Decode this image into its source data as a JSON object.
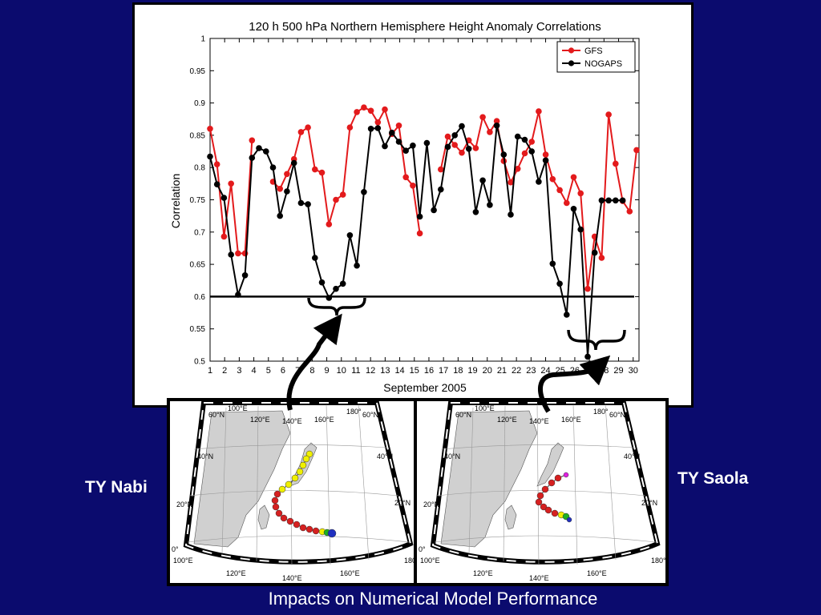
{
  "chart_data": {
    "type": "line",
    "title": "120 h 500 hPa Northern Hemisphere Height Anomaly Correlations",
    "xlabel": "September 2005",
    "ylabel": "Correlation",
    "xlim": [
      1,
      30.4
    ],
    "ylim": [
      0.5,
      1
    ],
    "x_ticks": [
      1,
      2,
      3,
      4,
      5,
      6,
      7,
      8,
      9,
      10,
      11,
      12,
      13,
      14,
      15,
      16,
      17,
      18,
      19,
      20,
      21,
      22,
      23,
      24,
      25,
      26,
      27,
      28,
      29,
      30
    ],
    "y_ticks": [
      0.5,
      0.55,
      0.6,
      0.65,
      0.7,
      0.75,
      0.8,
      0.85,
      0.9,
      0.95,
      1
    ],
    "y_tick_labels": [
      "0.5",
      "0.55",
      "0.6",
      "0.65",
      "0.7",
      "0.75",
      "0.8",
      "0.85",
      "0.9",
      "0.95",
      "1"
    ],
    "threshold": 0.6,
    "legend_position": "top-right",
    "series": [
      {
        "name": "GFS",
        "color": "#e31a1c",
        "points": [
          [
            1,
            0.86
          ],
          [
            1.5,
            0.805
          ],
          [
            2,
            0.693
          ],
          [
            2.5,
            0.775
          ],
          [
            3,
            0.667
          ],
          [
            3.5,
            0.667
          ],
          [
            4,
            0.842
          ],
          [
            null,
            null
          ],
          [
            5.5,
            0.778
          ],
          [
            6,
            0.767
          ],
          [
            6.5,
            0.79
          ],
          [
            7,
            0.813
          ],
          [
            7.5,
            0.855
          ],
          [
            8,
            0.862
          ],
          [
            8.5,
            0.797
          ],
          [
            9,
            0.792
          ],
          [
            9.5,
            0.712
          ],
          [
            10,
            0.75
          ],
          [
            10.5,
            0.758
          ],
          [
            11,
            0.862
          ],
          [
            11.5,
            0.886
          ],
          [
            12,
            0.893
          ],
          [
            12.5,
            0.888
          ],
          [
            13,
            0.87
          ],
          [
            13.5,
            0.89
          ],
          [
            14,
            0.852
          ],
          [
            14.5,
            0.865
          ],
          [
            15,
            0.785
          ],
          [
            15.5,
            0.772
          ],
          [
            16,
            0.698
          ],
          [
            null,
            null
          ],
          [
            17.5,
            0.797
          ],
          [
            18,
            0.848
          ],
          [
            18.5,
            0.835
          ],
          [
            19,
            0.823
          ],
          [
            19.5,
            0.842
          ],
          [
            20,
            0.83
          ],
          [
            20.5,
            0.878
          ],
          [
            21,
            0.855
          ],
          [
            21.5,
            0.872
          ],
          [
            22,
            0.81
          ],
          [
            22.5,
            0.777
          ],
          [
            23,
            0.798
          ],
          [
            23.5,
            0.822
          ],
          [
            24,
            0.84
          ],
          [
            24.5,
            0.887
          ],
          [
            25,
            0.82
          ],
          [
            25.5,
            0.782
          ],
          [
            26,
            0.765
          ],
          [
            26.5,
            0.745
          ],
          [
            27,
            0.785
          ],
          [
            27.5,
            0.76
          ],
          [
            28,
            0.612
          ],
          [
            28.5,
            0.693
          ],
          [
            29,
            0.66
          ],
          [
            29.5,
            0.882
          ],
          [
            30,
            0.806
          ],
          [
            30.5,
            0.748
          ],
          [
            31,
            0.732
          ],
          [
            31.5,
            0.827
          ]
        ]
      },
      {
        "name": "NOGAPS",
        "color": "#000000",
        "points": [
          [
            1,
            0.817
          ],
          [
            1.5,
            0.774
          ],
          [
            2,
            0.753
          ],
          [
            2.5,
            0.665
          ],
          [
            3,
            0.603
          ],
          [
            3.5,
            0.633
          ],
          [
            4,
            0.815
          ],
          [
            4.5,
            0.83
          ],
          [
            5,
            0.825
          ],
          [
            5.5,
            0.8
          ],
          [
            6,
            0.725
          ],
          [
            6.5,
            0.763
          ],
          [
            7,
            0.807
          ],
          [
            7.5,
            0.745
          ],
          [
            8,
            0.743
          ],
          [
            8.5,
            0.66
          ],
          [
            9,
            0.622
          ],
          [
            9.5,
            0.598
          ],
          [
            10,
            0.612
          ],
          [
            10.5,
            0.62
          ],
          [
            11,
            0.695
          ],
          [
            11.5,
            0.648
          ],
          [
            12,
            0.762
          ],
          [
            12.5,
            0.86
          ],
          [
            13,
            0.861
          ],
          [
            13.5,
            0.833
          ],
          [
            14,
            0.854
          ],
          [
            14.5,
            0.84
          ],
          [
            15,
            0.826
          ],
          [
            15.5,
            0.834
          ],
          [
            16,
            0.724
          ],
          [
            16.5,
            0.838
          ],
          [
            17,
            0.734
          ],
          [
            17.5,
            0.766
          ],
          [
            18,
            0.832
          ],
          [
            18.5,
            0.85
          ],
          [
            19,
            0.864
          ],
          [
            19.5,
            0.829
          ],
          [
            20,
            0.731
          ],
          [
            20.5,
            0.78
          ],
          [
            21,
            0.742
          ],
          [
            21.5,
            0.865
          ],
          [
            22,
            0.82
          ],
          [
            22.5,
            0.727
          ],
          [
            23,
            0.848
          ],
          [
            23.5,
            0.843
          ],
          [
            24,
            0.825
          ],
          [
            24.5,
            0.778
          ],
          [
            25,
            0.811
          ],
          [
            25.5,
            0.651
          ],
          [
            26,
            0.62
          ],
          [
            26.5,
            0.572
          ],
          [
            27,
            0.736
          ],
          [
            27.5,
            0.704
          ],
          [
            28,
            0.507
          ],
          [
            28.5,
            0.668
          ],
          [
            29,
            0.749
          ],
          [
            29.5,
            0.749
          ],
          [
            30,
            0.749
          ],
          [
            30.5,
            0.749
          ]
        ]
      }
    ]
  },
  "maps": {
    "nabi": {
      "lon_labels_top": [
        "60°N",
        "100°E",
        "120°E",
        "140°E",
        "160°E",
        "180°",
        "60°N"
      ],
      "lat_labels": [
        "40°N",
        "20°N",
        "0°"
      ],
      "lon_labels_bottom": [
        "100°E",
        "120°E",
        "140°E",
        "160°E",
        "180°"
      ],
      "track_colors": [
        "#d62020",
        "#f0f000",
        "#2030c0",
        "#20b020"
      ]
    },
    "saola": {
      "lon_labels_top": [
        "60°N",
        "100°E",
        "120°E",
        "140°E",
        "160°E",
        "180°",
        "60°N"
      ],
      "lat_labels": [
        "40°N",
        "20°N",
        "0°"
      ],
      "lon_labels_bottom": [
        "100°E",
        "120°E",
        "140°E",
        "160°E",
        "180°"
      ],
      "track_colors": [
        "#d62020",
        "#f0f000",
        "#2030c0",
        "#20b020",
        "#e020e0"
      ]
    }
  },
  "labels": {
    "nabi": "TY Nabi",
    "saola": "TY Saola",
    "caption": "Impacts on Numerical Model Performance"
  }
}
